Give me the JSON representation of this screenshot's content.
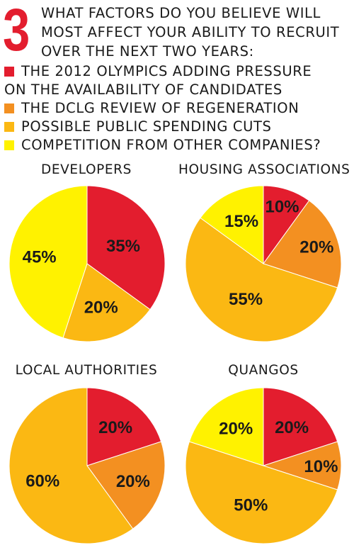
{
  "question": {
    "number": "3",
    "lines": [
      "WHAT FACTORS DO YOU BELIEVE WILL",
      "MOST AFFECT YOUR ABILITY TO RECRUIT",
      "OVER THE NEXT TWO YEARS:"
    ]
  },
  "legend": [
    {
      "label": "THE 2012 OLYMPICS ADDING PRESSURE",
      "continuation": "ON THE AVAILABILITY OF CANDIDATES",
      "color": "#e31d2e"
    },
    {
      "label": "THE DCLG REVIEW OF REGENERATION",
      "color": "#f39021"
    },
    {
      "label": "POSSIBLE PUBLIC SPENDING CUTS",
      "color": "#fbb813"
    },
    {
      "label": "COMPETITION FROM OTHER COMPANIES?",
      "color": "#fff200"
    }
  ],
  "chart_data": [
    {
      "type": "pie",
      "title": "DEVELOPERS",
      "slices": [
        {
          "category": "THE 2012 OLYMPICS ADDING PRESSURE ON THE AVAILABILITY OF CANDIDATES",
          "value": 35,
          "label": "35%",
          "color": "#e31d2e"
        },
        {
          "category": "POSSIBLE PUBLIC SPENDING CUTS",
          "value": 20,
          "label": "20%",
          "color": "#fbb813"
        },
        {
          "category": "COMPETITION FROM OTHER COMPANIES?",
          "value": 45,
          "label": "45%",
          "color": "#fff200"
        }
      ]
    },
    {
      "type": "pie",
      "title": "HOUSING ASSOCIATIONS",
      "slices": [
        {
          "category": "THE 2012 OLYMPICS ADDING PRESSURE ON THE AVAILABILITY OF CANDIDATES",
          "value": 10,
          "label": "10%",
          "color": "#e31d2e"
        },
        {
          "category": "THE DCLG REVIEW OF REGENERATION",
          "value": 20,
          "label": "20%",
          "color": "#f39021"
        },
        {
          "category": "POSSIBLE PUBLIC SPENDING CUTS",
          "value": 55,
          "label": "55%",
          "color": "#fbb813"
        },
        {
          "category": "COMPETITION FROM OTHER COMPANIES?",
          "value": 15,
          "label": "15%",
          "color": "#fff200"
        }
      ]
    },
    {
      "type": "pie",
      "title": "LOCAL AUTHORITIES",
      "slices": [
        {
          "category": "THE 2012 OLYMPICS ADDING PRESSURE ON THE AVAILABILITY OF CANDIDATES",
          "value": 20,
          "label": "20%",
          "color": "#e31d2e"
        },
        {
          "category": "THE DCLG REVIEW OF REGENERATION",
          "value": 20,
          "label": "20%",
          "color": "#f39021"
        },
        {
          "category": "POSSIBLE PUBLIC SPENDING CUTS",
          "value": 60,
          "label": "60%",
          "color": "#fbb813"
        }
      ]
    },
    {
      "type": "pie",
      "title": "QUANGOS",
      "slices": [
        {
          "category": "THE 2012 OLYMPICS ADDING PRESSURE ON THE AVAILABILITY OF CANDIDATES",
          "value": 20,
          "label": "20%",
          "color": "#e31d2e"
        },
        {
          "category": "THE DCLG REVIEW OF REGENERATION",
          "value": 10,
          "label": "10%",
          "color": "#f39021"
        },
        {
          "category": "POSSIBLE PUBLIC SPENDING CUTS",
          "value": 50,
          "label": "50%",
          "color": "#fbb813"
        },
        {
          "category": "COMPETITION FROM OTHER COMPANIES?",
          "value": 20,
          "label": "20%",
          "color": "#fff200"
        }
      ]
    }
  ]
}
